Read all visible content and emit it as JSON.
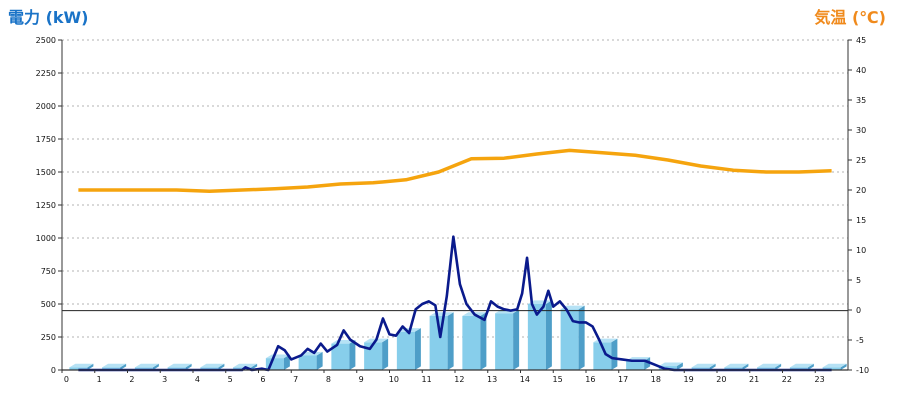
{
  "chart_data": {
    "type": "bar+line",
    "left_axis_title": "電力 (kW)",
    "right_axis_title": "気温 (℃)",
    "hours": [
      "0",
      "1",
      "2",
      "3",
      "4",
      "5",
      "6",
      "7",
      "8",
      "9",
      "10",
      "11",
      "12",
      "13",
      "14",
      "15",
      "16",
      "17",
      "18",
      "19",
      "20",
      "21",
      "22",
      "23"
    ],
    "left_ticks": [
      "0",
      "250",
      "500",
      "750",
      "1000",
      "1250",
      "1500",
      "1750",
      "2000",
      "2250",
      "2500"
    ],
    "right_ticks": [
      "-10",
      "-5",
      "0",
      "5",
      "10",
      "15",
      "20",
      "25",
      "30",
      "35",
      "40",
      "45"
    ],
    "left_ylim": [
      0,
      2500
    ],
    "right_ylim": [
      -10,
      45
    ],
    "grid": true,
    "reference_line_kw": 450,
    "colors": {
      "bars": "#87ceeb",
      "bars_dark": "#4e9ec8",
      "power_line": "#0a1a8c",
      "temperature_line": "#f5a40e",
      "left_title": "#1a73c7",
      "right_title": "#f08a1c"
    },
    "bars_kw": [
      20,
      20,
      20,
      20,
      20,
      20,
      90,
      110,
      200,
      210,
      290,
      410,
      410,
      430,
      500,
      460,
      210,
      70,
      30,
      20,
      20,
      20,
      20,
      20
    ],
    "temperature_c": [
      [
        0,
        20
      ],
      [
        1,
        20
      ],
      [
        2,
        20
      ],
      [
        3,
        20
      ],
      [
        4,
        19.8
      ],
      [
        5,
        20
      ],
      [
        6,
        20.2
      ],
      [
        7,
        20.5
      ],
      [
        8,
        21
      ],
      [
        9,
        21.2
      ],
      [
        10,
        21.7
      ],
      [
        11,
        23
      ],
      [
        12,
        25.2
      ],
      [
        13,
        25.3
      ],
      [
        14,
        26
      ],
      [
        15,
        26.6
      ],
      [
        16,
        26.2
      ],
      [
        17,
        25.8
      ],
      [
        18,
        25
      ],
      [
        19,
        24
      ],
      [
        20,
        23.3
      ],
      [
        21,
        23
      ],
      [
        22,
        23
      ],
      [
        23,
        23.2
      ]
    ],
    "power_kw": [
      [
        0,
        0
      ],
      [
        1,
        0
      ],
      [
        2,
        0
      ],
      [
        3,
        0
      ],
      [
        4,
        0
      ],
      [
        5,
        0
      ],
      [
        5.1,
        20
      ],
      [
        5.3,
        0
      ],
      [
        5.6,
        10
      ],
      [
        5.8,
        0
      ],
      [
        6.1,
        180
      ],
      [
        6.3,
        150
      ],
      [
        6.5,
        80
      ],
      [
        6.8,
        110
      ],
      [
        7,
        160
      ],
      [
        7.2,
        130
      ],
      [
        7.4,
        200
      ],
      [
        7.6,
        140
      ],
      [
        7.9,
        190
      ],
      [
        8.1,
        300
      ],
      [
        8.3,
        230
      ],
      [
        8.6,
        180
      ],
      [
        8.9,
        160
      ],
      [
        9.1,
        230
      ],
      [
        9.3,
        390
      ],
      [
        9.5,
        270
      ],
      [
        9.7,
        260
      ],
      [
        9.9,
        330
      ],
      [
        10.1,
        280
      ],
      [
        10.3,
        460
      ],
      [
        10.5,
        500
      ],
      [
        10.7,
        520
      ],
      [
        10.9,
        490
      ],
      [
        11.05,
        250
      ],
      [
        11.25,
        560
      ],
      [
        11.45,
        1010
      ],
      [
        11.65,
        650
      ],
      [
        11.85,
        500
      ],
      [
        12.1,
        420
      ],
      [
        12.4,
        380
      ],
      [
        12.6,
        520
      ],
      [
        12.8,
        480
      ],
      [
        13.0,
        460
      ],
      [
        13.2,
        450
      ],
      [
        13.4,
        460
      ],
      [
        13.55,
        580
      ],
      [
        13.7,
        850
      ],
      [
        13.85,
        500
      ],
      [
        14.0,
        420
      ],
      [
        14.2,
        480
      ],
      [
        14.35,
        600
      ],
      [
        14.5,
        480
      ],
      [
        14.7,
        520
      ],
      [
        14.9,
        460
      ],
      [
        15.1,
        370
      ],
      [
        15.3,
        360
      ],
      [
        15.5,
        360
      ],
      [
        15.7,
        330
      ],
      [
        15.9,
        230
      ],
      [
        16.1,
        120
      ],
      [
        16.3,
        90
      ],
      [
        16.6,
        80
      ],
      [
        16.9,
        70
      ],
      [
        17.3,
        70
      ],
      [
        17.6,
        40
      ],
      [
        17.9,
        10
      ],
      [
        18.2,
        0
      ],
      [
        19,
        0
      ],
      [
        20,
        0
      ],
      [
        21,
        0
      ],
      [
        22,
        0
      ],
      [
        23,
        0
      ]
    ]
  }
}
